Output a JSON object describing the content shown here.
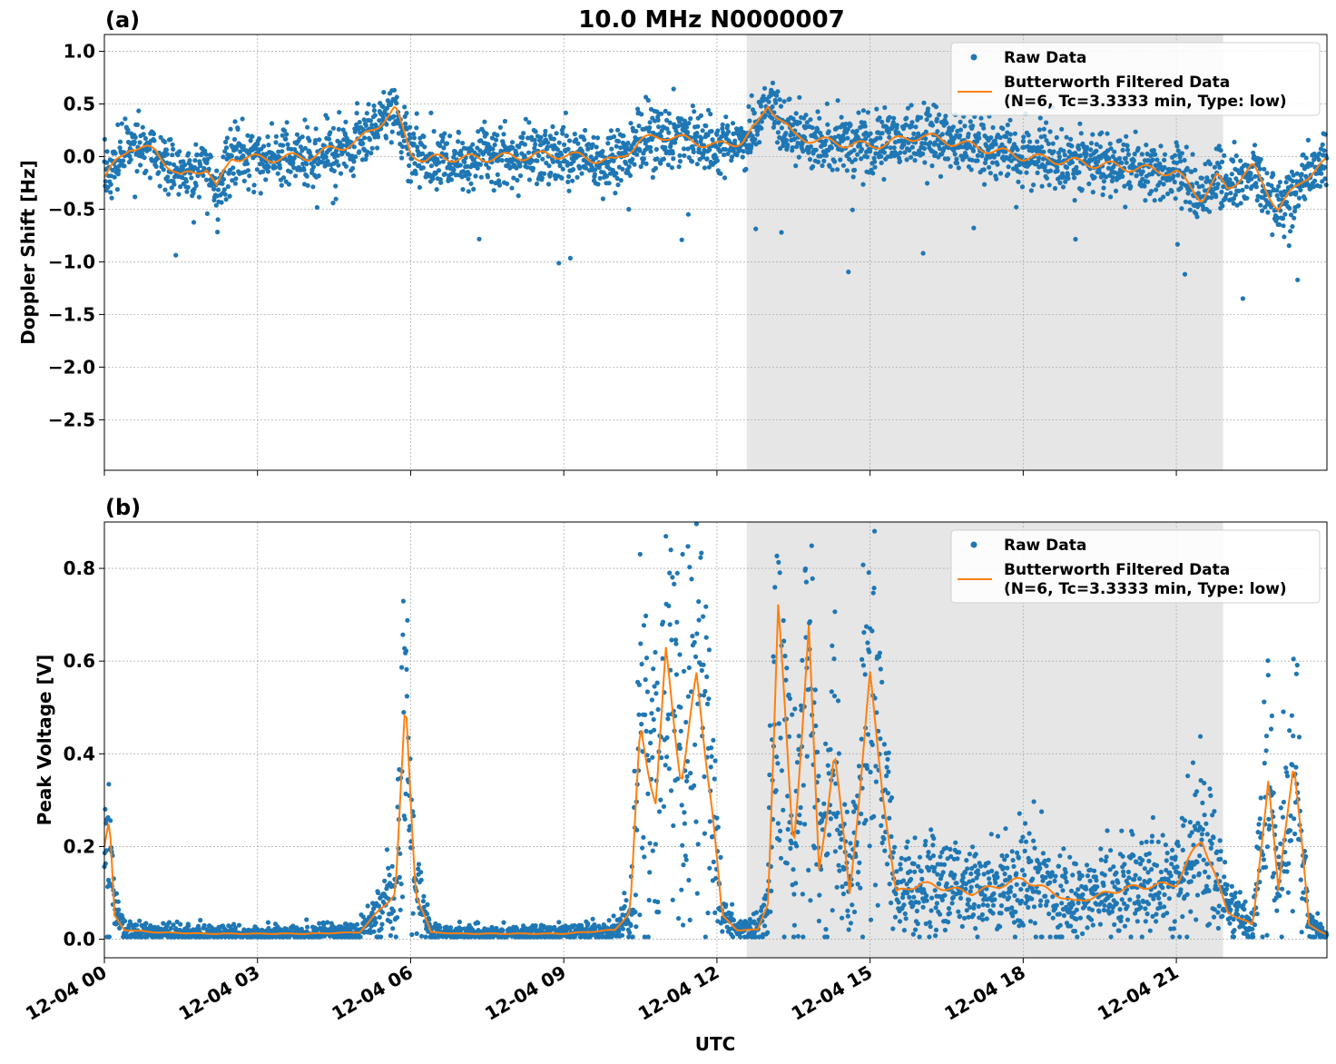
{
  "figure": {
    "title": "10.0 MHz N0000007",
    "xlabel": "UTC"
  },
  "legend": {
    "raw": "Raw Data",
    "filtered_line1": "Butterworth Filtered Data",
    "filtered_line2": "(N=6, Tc=3.3333 min, Type: low)"
  },
  "colors": {
    "raw": "#1f77b4",
    "filtered": "#ff7f0e",
    "shade": "#e6e6e6",
    "grid": "#b0b0b0"
  },
  "chart_data": [
    {
      "panel_label": "(a)",
      "type": "scatter",
      "ylabel": "Doppler Shift [Hz]",
      "xlim": [
        "2024-12-04 00:00",
        "2024-12-04 23:55"
      ],
      "ylim": [
        -2.98,
        1.16
      ],
      "yticks": [
        1.0,
        0.5,
        0.0,
        -0.5,
        -1.0,
        -1.5,
        -2.0,
        -2.5
      ],
      "ytick_labels": [
        "1.0",
        "0.5",
        "0.0",
        "−0.5",
        "−1.0",
        "−1.5",
        "−2.0",
        "−2.5"
      ],
      "grid": true,
      "legend_position": "top-right",
      "shaded_interval": [
        "12:35",
        "21:55"
      ],
      "series": [
        {
          "name": "Raw Data",
          "kind": "points"
        },
        {
          "name": "Butterworth Filtered Data\n(N=6, Tc=3.3333 min, Type: low)",
          "kind": "line",
          "x_hours": [
            0,
            0.5,
            1,
            1.5,
            2,
            2.2,
            2.5,
            3,
            4,
            5,
            5.7,
            6,
            6.3,
            6.6,
            7,
            8,
            9,
            10,
            10.5,
            11,
            12,
            12.5,
            12.8,
            13,
            13.5,
            14,
            15,
            16,
            17,
            18,
            19,
            20,
            21,
            21.5,
            21.8,
            22,
            22.5,
            23,
            23.5,
            23.95
          ],
          "values": [
            -0.2,
            0.1,
            0.05,
            -0.2,
            -0.1,
            -0.3,
            0.0,
            -0.02,
            0.0,
            0.15,
            0.45,
            0.05,
            -0.05,
            0.0,
            -0.02,
            0.0,
            0.02,
            -0.05,
            0.15,
            0.2,
            0.1,
            0.15,
            0.3,
            0.5,
            0.2,
            0.15,
            0.1,
            0.2,
            0.1,
            0.0,
            -0.05,
            -0.1,
            -0.15,
            -0.4,
            -0.2,
            -0.3,
            -0.1,
            -0.5,
            -0.2,
            -0.05
          ]
        }
      ]
    },
    {
      "panel_label": "(b)",
      "type": "scatter",
      "ylabel": "Peak Voltage [V]",
      "xlim": [
        "2024-12-04 00:00",
        "2024-12-04 23:55"
      ],
      "ylim": [
        -0.04,
        0.9
      ],
      "yticks": [
        0.8,
        0.6,
        0.4,
        0.2,
        0.0
      ],
      "ytick_labels": [
        "0.8",
        "0.6",
        "0.4",
        "0.2",
        "0.0"
      ],
      "grid": true,
      "legend_position": "top-right",
      "shaded_interval": [
        "12:35",
        "21:55"
      ],
      "series": [
        {
          "name": "Raw Data",
          "kind": "points"
        },
        {
          "name": "Butterworth Filtered Data\n(N=6, Tc=3.3333 min, Type: low)",
          "kind": "line",
          "x_hours": [
            0,
            0.1,
            0.2,
            0.4,
            1,
            2,
            3,
            4,
            5,
            5.7,
            5.9,
            6.1,
            6.4,
            7,
            8,
            9,
            10,
            10.3,
            10.5,
            10.8,
            11,
            11.3,
            11.6,
            11.9,
            12.1,
            12.4,
            12.8,
            13,
            13.2,
            13.5,
            13.8,
            14,
            14.3,
            14.6,
            15,
            15.5,
            16,
            17,
            18,
            19,
            20,
            21,
            21.5,
            22,
            22.5,
            22.8,
            23,
            23.3,
            23.6,
            23.95
          ],
          "values": [
            0.2,
            0.25,
            0.05,
            0.02,
            0.015,
            0.012,
            0.012,
            0.012,
            0.015,
            0.1,
            0.5,
            0.1,
            0.015,
            0.012,
            0.012,
            0.012,
            0.02,
            0.06,
            0.45,
            0.3,
            0.6,
            0.35,
            0.55,
            0.3,
            0.05,
            0.02,
            0.02,
            0.08,
            0.7,
            0.2,
            0.65,
            0.15,
            0.4,
            0.1,
            0.55,
            0.1,
            0.12,
            0.1,
            0.13,
            0.08,
            0.11,
            0.12,
            0.22,
            0.06,
            0.03,
            0.35,
            0.1,
            0.4,
            0.03,
            0.01
          ]
        }
      ]
    }
  ],
  "xticks": [
    "12-04 00",
    "12-04 03",
    "12-04 06",
    "12-04 09",
    "12-04 12",
    "12-04 15",
    "12-04 18",
    "12-04 21"
  ]
}
